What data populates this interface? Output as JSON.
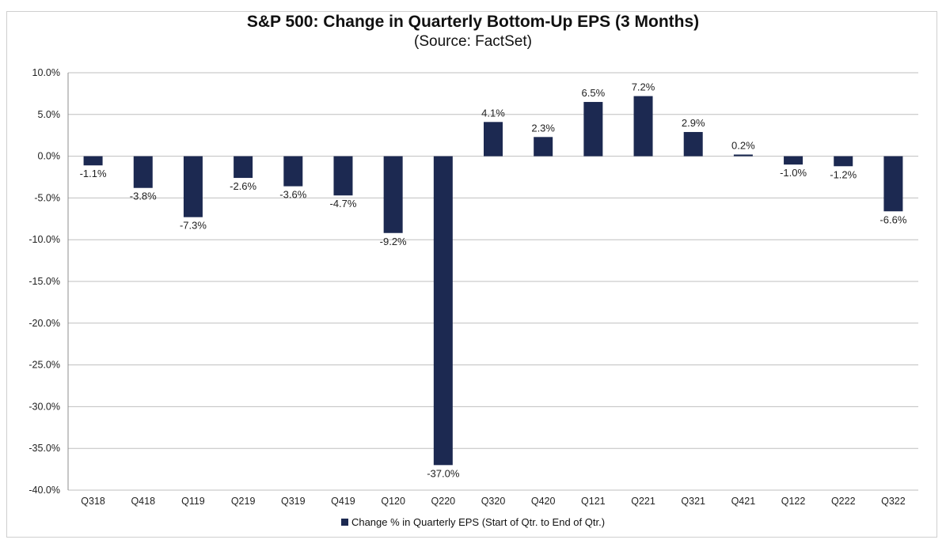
{
  "chart_data": {
    "type": "bar",
    "title": "S&P 500: Change in Quarterly Bottom-Up EPS (3 Months)",
    "subtitle": "(Source: FactSet)",
    "categories": [
      "Q318",
      "Q418",
      "Q119",
      "Q219",
      "Q319",
      "Q419",
      "Q120",
      "Q220",
      "Q320",
      "Q420",
      "Q121",
      "Q221",
      "Q321",
      "Q421",
      "Q122",
      "Q222",
      "Q322"
    ],
    "series": [
      {
        "name": "Change % in Quarterly EPS (Start of Qtr. to End of Qtr.)",
        "values": [
          -1.1,
          -3.8,
          -7.3,
          -2.6,
          -3.6,
          -4.7,
          -9.2,
          -37.0,
          4.1,
          2.3,
          6.5,
          7.2,
          2.9,
          0.2,
          -1.0,
          -1.2,
          -6.6
        ],
        "labels": [
          "-1.1%",
          "-3.8%",
          "-7.3%",
          "-2.6%",
          "-3.6%",
          "-4.7%",
          "-9.2%",
          "-37.0%",
          "4.1%",
          "2.3%",
          "6.5%",
          "7.2%",
          "2.9%",
          "0.2%",
          "-1.0%",
          "-1.2%",
          "-6.6%"
        ]
      }
    ],
    "ylim": [
      -40,
      10
    ],
    "yticks": [
      10,
      5,
      0,
      -5,
      -10,
      -15,
      -20,
      -25,
      -30,
      -35,
      -40
    ],
    "ytick_labels": [
      "10.0%",
      "5.0%",
      "0.0%",
      "-5.0%",
      "-10.0%",
      "-15.0%",
      "-20.0%",
      "-25.0%",
      "-30.0%",
      "-35.0%",
      "-40.0%"
    ],
    "grid": true,
    "legend_position": "bottom",
    "bar_color": "#1c2951",
    "grid_color": "#bfbfbf"
  }
}
